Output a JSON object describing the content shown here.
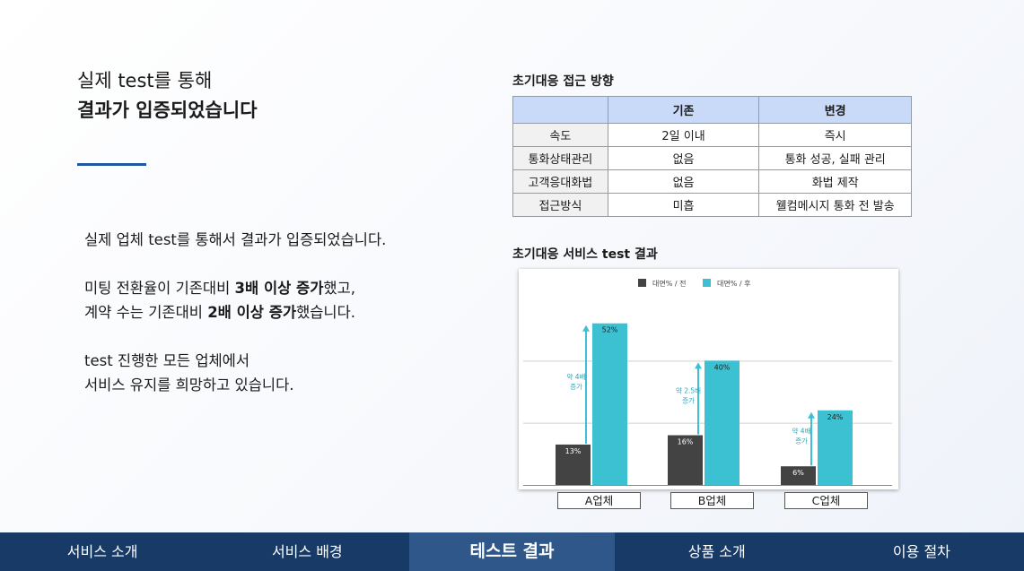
{
  "headline": {
    "line1": "실제 test를 통해",
    "line2": "결과가 입증되었습니다"
  },
  "body": {
    "p1": "실제 업체 test를 통해서 결과가 입증되었습니다.",
    "p2a_pre": "미팅 전환율이 기존대비 ",
    "p2a_bold": "3배 이상 증가",
    "p2a_post": "했고,",
    "p2b_pre": "계약 수는 기존대비 ",
    "p2b_bold": "2배 이상 증가",
    "p2b_post": "했습니다.",
    "p3a": "test 진행한 모든 업체에서",
    "p3b": "서비스 유지를 희망하고 있습니다."
  },
  "table_section": {
    "title": "초기대응 접근 방향",
    "headers": [
      "",
      "기존",
      "변경"
    ],
    "rows": [
      [
        "속도",
        "2일 이내",
        "즉시"
      ],
      [
        "통화상태관리",
        "없음",
        "통화 성공, 실패 관리"
      ],
      [
        "고객응대화법",
        "없음",
        "화법 제작"
      ],
      [
        "접근방식",
        "미흡",
        "웰컴메시지 통화 전 발송"
      ]
    ]
  },
  "chart_section": {
    "title": "초기대응 서비스 test 결과"
  },
  "chart_data": {
    "type": "bar",
    "categories": [
      "A업체",
      "B업체",
      "C업체"
    ],
    "series": [
      {
        "name": "대면% / 전",
        "values": [
          13,
          16,
          6
        ],
        "color": "#434343"
      },
      {
        "name": "대면% / 후",
        "values": [
          52,
          40,
          24
        ],
        "color": "#3cc1d3"
      }
    ],
    "value_labels": {
      "before": [
        "13%",
        "16%",
        "6%"
      ],
      "after": [
        "52%",
        "40%",
        "24%"
      ]
    },
    "annotations": [
      {
        "line1": "약 4배",
        "line2": "증가"
      },
      {
        "line1": "약 2.5배",
        "line2": "증가"
      },
      {
        "line1": "약 4배",
        "line2": "증가"
      }
    ],
    "annotation_color": "#3cc1d3",
    "ylim": [
      0,
      60
    ],
    "grid": true,
    "legend_position": "top"
  },
  "nav": {
    "items": [
      "서비스 소개",
      "서비스 배경",
      "테스트 결과",
      "상품 소개",
      "이용 절차"
    ],
    "active_index": 2
  }
}
